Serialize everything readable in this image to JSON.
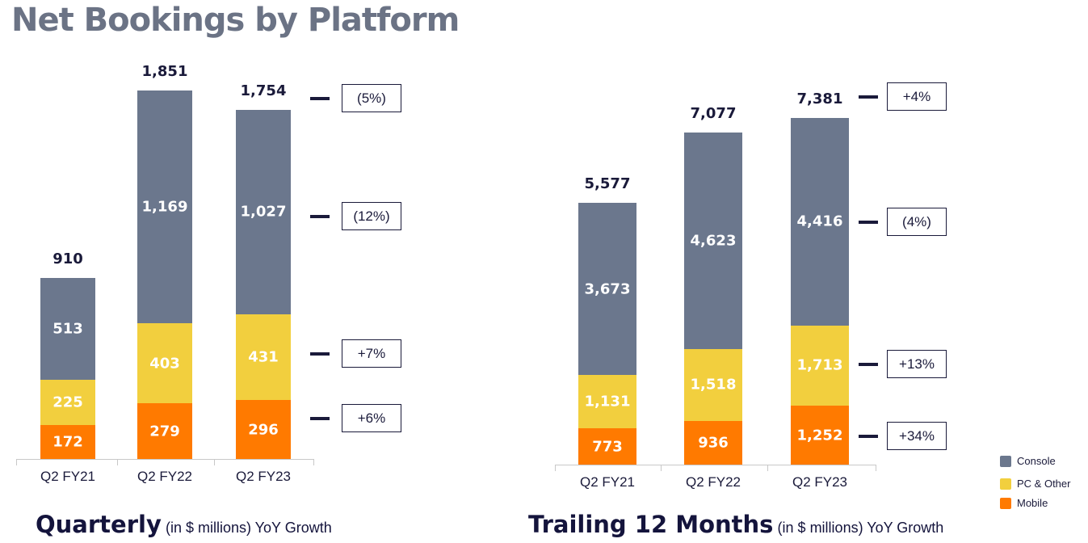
{
  "title": "Net Bookings by Platform",
  "colors": {
    "Console": "#6b778d",
    "PC & Other": "#f2cf3e",
    "Mobile": "#ff7a00"
  },
  "legend": [
    "Console",
    "PC & Other",
    "Mobile"
  ],
  "chart_data": [
    {
      "type": "bar",
      "stacked": true,
      "title": "Quarterly",
      "subtitle": "(in $ millions) YoY Growth",
      "categories": [
        "Q2 FY21",
        "Q2 FY22",
        "Q2 FY23"
      ],
      "series": [
        {
          "name": "Mobile",
          "values": [
            172,
            279,
            296
          ]
        },
        {
          "name": "PC & Other",
          "values": [
            225,
            403,
            431
          ]
        },
        {
          "name": "Console",
          "values": [
            513,
            1169,
            1027
          ]
        }
      ],
      "totals": [
        "910",
        "1,851",
        "1,754"
      ],
      "labels": {
        "Mobile": [
          "172",
          "279",
          "296"
        ],
        "PC & Other": [
          "225",
          "403",
          "431"
        ],
        "Console": [
          "513",
          "1,169",
          "1,027"
        ]
      },
      "yoy_growth": {
        "Total": "(5%)",
        "Console": "(12%)",
        "PC & Other": "+7%",
        "Mobile": "+6%"
      }
    },
    {
      "type": "bar",
      "stacked": true,
      "title": "Trailing 12 Months",
      "subtitle": "(in $ millions) YoY Growth",
      "categories": [
        "Q2 FY21",
        "Q2 FY22",
        "Q2 FY23"
      ],
      "series": [
        {
          "name": "Mobile",
          "values": [
            773,
            936,
            1252
          ]
        },
        {
          "name": "PC & Other",
          "values": [
            1131,
            1518,
            1713
          ]
        },
        {
          "name": "Console",
          "values": [
            3673,
            4623,
            4416
          ]
        }
      ],
      "totals": [
        "5,577",
        "7,077",
        "7,381"
      ],
      "labels": {
        "Mobile": [
          "773",
          "936",
          "1,252"
        ],
        "PC & Other": [
          "1,131",
          "1,518",
          "1,713"
        ],
        "Console": [
          "3,673",
          "4,623",
          "4,416"
        ]
      },
      "yoy_growth": {
        "Total": "+4%",
        "Console": "(4%)",
        "PC & Other": "+13%",
        "Mobile": "+34%"
      }
    }
  ]
}
